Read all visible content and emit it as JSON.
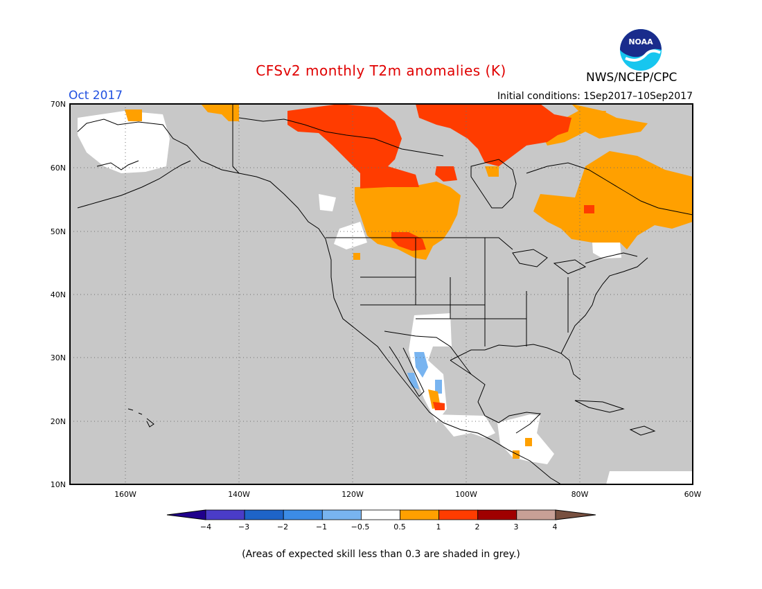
{
  "header": {
    "title": "CFSv2 monthly T2m anomalies (K)",
    "period": "Oct 2017",
    "initial_conditions": "Initial conditions: 1Sep2017–10Sep2017",
    "organization": "NWS/NCEP/CPC",
    "logo_icon": "noaa-logo-icon",
    "logo_text": "NOAA"
  },
  "map": {
    "lat_labels": [
      "70N",
      "60N",
      "50N",
      "40N",
      "30N",
      "20N",
      "10N"
    ],
    "lon_labels": [
      "160W",
      "140W",
      "120W",
      "100W",
      "80W",
      "60W"
    ],
    "extent": {
      "lon": [
        -172,
        -60
      ],
      "lat": [
        10,
        70
      ]
    },
    "grid": "dotted",
    "background_grey": "#c8c8c8"
  },
  "colorbar": {
    "labels": [
      "−4",
      "−3",
      "−2",
      "−1",
      "−0.5",
      "0.5",
      "1",
      "2",
      "3",
      "4"
    ],
    "colors": [
      "#20008c",
      "#4a3cc8",
      "#1e64c8",
      "#3c8ce6",
      "#78b4f0",
      "#ffffff",
      "#ffa000",
      "#ff3c00",
      "#a00000",
      "#c8a096",
      "#785040"
    ]
  },
  "footer": {
    "skill_note": "(Areas of expected skill less than 0.3 are shaded in grey.)"
  }
}
